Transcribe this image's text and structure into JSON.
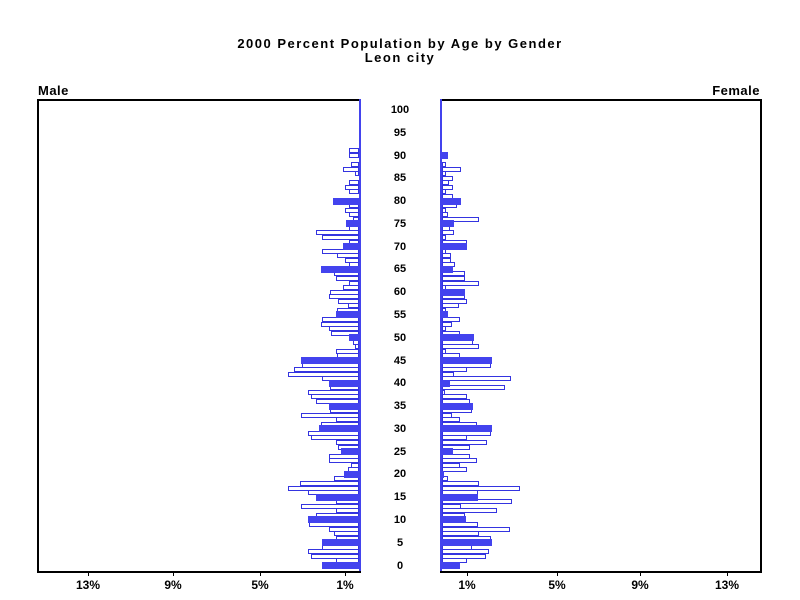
{
  "title": {
    "line1": "2000 Percent Population by Age by Gender",
    "line2": "Leon city"
  },
  "panel_labels": {
    "male": "Male",
    "female": "Female"
  },
  "colors": {
    "bar_blue": "#4343ee",
    "bar_border_blue": "#3434e0",
    "axis_black": "#000000",
    "background": "#ffffff"
  },
  "chart_data": {
    "type": "bar",
    "variant": "population-pyramid",
    "title": "2000 Percent Population by Age by Gender",
    "subtitle": "Leon city",
    "x_unit": "percent of population, single year of age",
    "age_axis_ticks": [
      0,
      5,
      10,
      15,
      20,
      25,
      30,
      35,
      40,
      45,
      50,
      55,
      60,
      65,
      70,
      75,
      80,
      85,
      90,
      95,
      100
    ],
    "male_pct_tick_labels": [
      "13%",
      "9%",
      "5%",
      "1%"
    ],
    "female_pct_tick_labels": [
      "1%",
      "5%",
      "9%",
      "13%"
    ],
    "xlim_each_side": [
      0,
      15
    ],
    "grid": false,
    "legend": "none; bars at ages divisible by 5 are solid blue, other ages are white with blue outline",
    "note_ages": "series values are indexed by age 0..100",
    "series": [
      {
        "name": "Male",
        "side": "left",
        "values": [
          1.72,
          1.05,
          2.22,
          2.37,
          1.7,
          1.72,
          1.05,
          1.16,
          1.4,
          2.3,
          2.37,
          1.98,
          1.05,
          2.68,
          1.05,
          1.98,
          2.37,
          3.3,
          2.73,
          1.16,
          0.7,
          0.5,
          0.35,
          1.4,
          1.4,
          0.85,
          0.95,
          1.05,
          2.22,
          2.37,
          1.83,
          1.75,
          1.05,
          2.68,
          1.35,
          1.4,
          1.98,
          2.22,
          2.37,
          1.35,
          1.4,
          1.72,
          3.3,
          3.02,
          2.65,
          2.68,
          1.0,
          1.05,
          0.2,
          0.28,
          0.47,
          1.31,
          1.39,
          1.74,
          1.7,
          1.05,
          1.0,
          0.5,
          0.97,
          1.39,
          1.33,
          0.74,
          0.47,
          1.05,
          1.16,
          1.75,
          0.47,
          0.64,
          1.02,
          1.72,
          0.74,
          0.47,
          1.72,
          2.0,
          0.47,
          0.6,
          0.3,
          0.47,
          0.64,
          0.47,
          1.21,
          0,
          0.47,
          0.64,
          0.47,
          0,
          0.2,
          0.74,
          0.37,
          0,
          0.47,
          0.45,
          0,
          0,
          0,
          0,
          0,
          0,
          0,
          0,
          0
        ]
      },
      {
        "name": "Female",
        "side": "right",
        "values": [
          0.82,
          1.14,
          2.02,
          2.18,
          1.4,
          2.3,
          2.25,
          1.72,
          3.15,
          1.68,
          1.1,
          1.05,
          2.56,
          0.87,
          3.23,
          1.68,
          1.65,
          3.63,
          1.7,
          0.28,
          0.1,
          1.16,
          0.85,
          1.62,
          1.31,
          0.51,
          1.3,
          2.08,
          1.16,
          2.25,
          2.31,
          1.62,
          0.85,
          0.46,
          1.4,
          1.45,
          1.3,
          1.17,
          0.15,
          2.9,
          0.37,
          3.19,
          0.56,
          1.16,
          2.25,
          2.31,
          0.85,
          0.19,
          1.7,
          1.45,
          1.5,
          0.85,
          0.2,
          0.46,
          0.85,
          0.28,
          0.19,
          0.77,
          1.16,
          1.05,
          1.08,
          0.19,
          1.7,
          1.05,
          1.05,
          0.51,
          0.62,
          0.43,
          0.43,
          0.19,
          1.16,
          1.16,
          0.17,
          0.57,
          0.35,
          0.54,
          1.7,
          0.28,
          0.19,
          0.7,
          0.88,
          0.51,
          0.19,
          0.51,
          0.33,
          0.51,
          0.19,
          0.88,
          0.19,
          0,
          0.28,
          0,
          0,
          0,
          0,
          0,
          0,
          0,
          0,
          0,
          0
        ]
      }
    ],
    "solid_fill_rule": "every age divisible by 5",
    "outline_exceptions": {
      "Male": [
        60,
        90
      ],
      "Female": [
        85
      ]
    }
  }
}
